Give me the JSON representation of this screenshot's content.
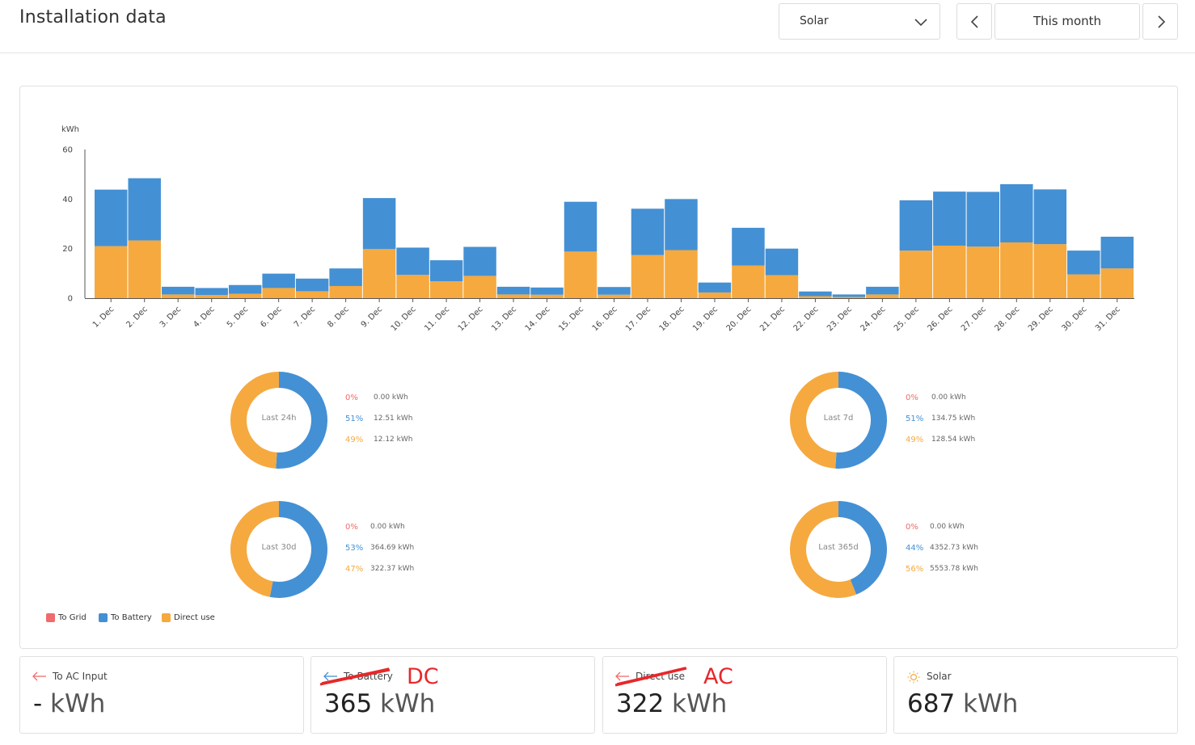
{
  "header": {
    "title": "Installation data",
    "source_select": "Solar",
    "period": "This month"
  },
  "colors": {
    "to_grid": "#f06b6b",
    "to_battery": "#4490d4",
    "direct_use": "#f5a93f",
    "annotation": "#e8272a"
  },
  "chart_data": {
    "type": "bar",
    "stacked": true,
    "ylabel": "kWh",
    "ylim": [
      0,
      60
    ],
    "yticks": [
      0,
      20,
      40,
      60
    ],
    "categories": [
      "1. Dec",
      "2. Dec",
      "3. Dec",
      "4. Dec",
      "5. Dec",
      "6. Dec",
      "7. Dec",
      "8. Dec",
      "9. Dec",
      "10. Dec",
      "11. Dec",
      "12. Dec",
      "13. Dec",
      "14. Dec",
      "15. Dec",
      "16. Dec",
      "17. Dec",
      "18. Dec",
      "19. Dec",
      "20. Dec",
      "21. Dec",
      "22. Dec",
      "23. Dec",
      "24. Dec",
      "25. Dec",
      "26. Dec",
      "27. Dec",
      "28. Dec",
      "29. Dec",
      "30. Dec",
      "31. Dec"
    ],
    "series": [
      {
        "name": "Direct use",
        "color": "#f5a93f",
        "values": [
          21,
          23.3,
          1.5,
          1.3,
          1.8,
          4.1,
          2.8,
          4.9,
          19.8,
          9.4,
          6.8,
          9,
          1.5,
          1.4,
          18.8,
          1.4,
          17.4,
          19.4,
          2.3,
          13.2,
          9.3,
          0.8,
          0.5,
          1.5,
          19.2,
          21.2,
          20.8,
          22.5,
          21.8,
          9.6,
          12
        ]
      },
      {
        "name": "To Battery",
        "color": "#4490d4",
        "values": [
          22.8,
          25.1,
          3.1,
          2.8,
          3.5,
          5.8,
          5.1,
          7.1,
          20.6,
          11,
          8.5,
          11.7,
          3.1,
          2.9,
          20.1,
          3.1,
          18.7,
          20.6,
          4,
          15.2,
          10.7,
          1.9,
          1,
          3.1,
          20.3,
          21.8,
          22.1,
          23.5,
          22.1,
          9.6,
          12.8
        ]
      }
    ],
    "legend": [
      "To Grid",
      "To Battery",
      "Direct use"
    ],
    "legend_position": "bottom-left"
  },
  "donuts": [
    {
      "label": "Last 24h",
      "grid_pct": "0%",
      "grid_kwh": "0.00 kWh",
      "battery_pct": "51%",
      "battery_kwh": "12.51 kWh",
      "direct_pct": "49%",
      "direct_kwh": "12.12 kWh",
      "battery_fraction": 0.51
    },
    {
      "label": "Last 7d",
      "grid_pct": "0%",
      "grid_kwh": "0.00 kWh",
      "battery_pct": "51%",
      "battery_kwh": "134.75 kWh",
      "direct_pct": "49%",
      "direct_kwh": "128.54 kWh",
      "battery_fraction": 0.51
    },
    {
      "label": "Last 30d",
      "grid_pct": "0%",
      "grid_kwh": "0.00 kWh",
      "battery_pct": "53%",
      "battery_kwh": "364.69 kWh",
      "direct_pct": "47%",
      "direct_kwh": "322.37 kWh",
      "battery_fraction": 0.53
    },
    {
      "label": "Last 365d",
      "grid_pct": "0%",
      "grid_kwh": "0.00 kWh",
      "battery_pct": "44%",
      "battery_kwh": "4352.73 kWh",
      "direct_pct": "56%",
      "direct_kwh": "5553.78 kWh",
      "battery_fraction": 0.44
    }
  ],
  "stats": [
    {
      "label": "To AC Input",
      "value": "-",
      "unit": "kWh",
      "icon": "arrow-left-icon"
    },
    {
      "label": "To Battery",
      "value": "365",
      "unit": "kWh",
      "icon": "arrow-left-icon",
      "annotation": "DC"
    },
    {
      "label": "Direct use",
      "value": "322",
      "unit": "kWh",
      "icon": "arrow-left-icon",
      "annotation": "AC"
    },
    {
      "label": "Solar",
      "value": "687",
      "unit": "kWh",
      "icon": "sun-icon"
    }
  ]
}
